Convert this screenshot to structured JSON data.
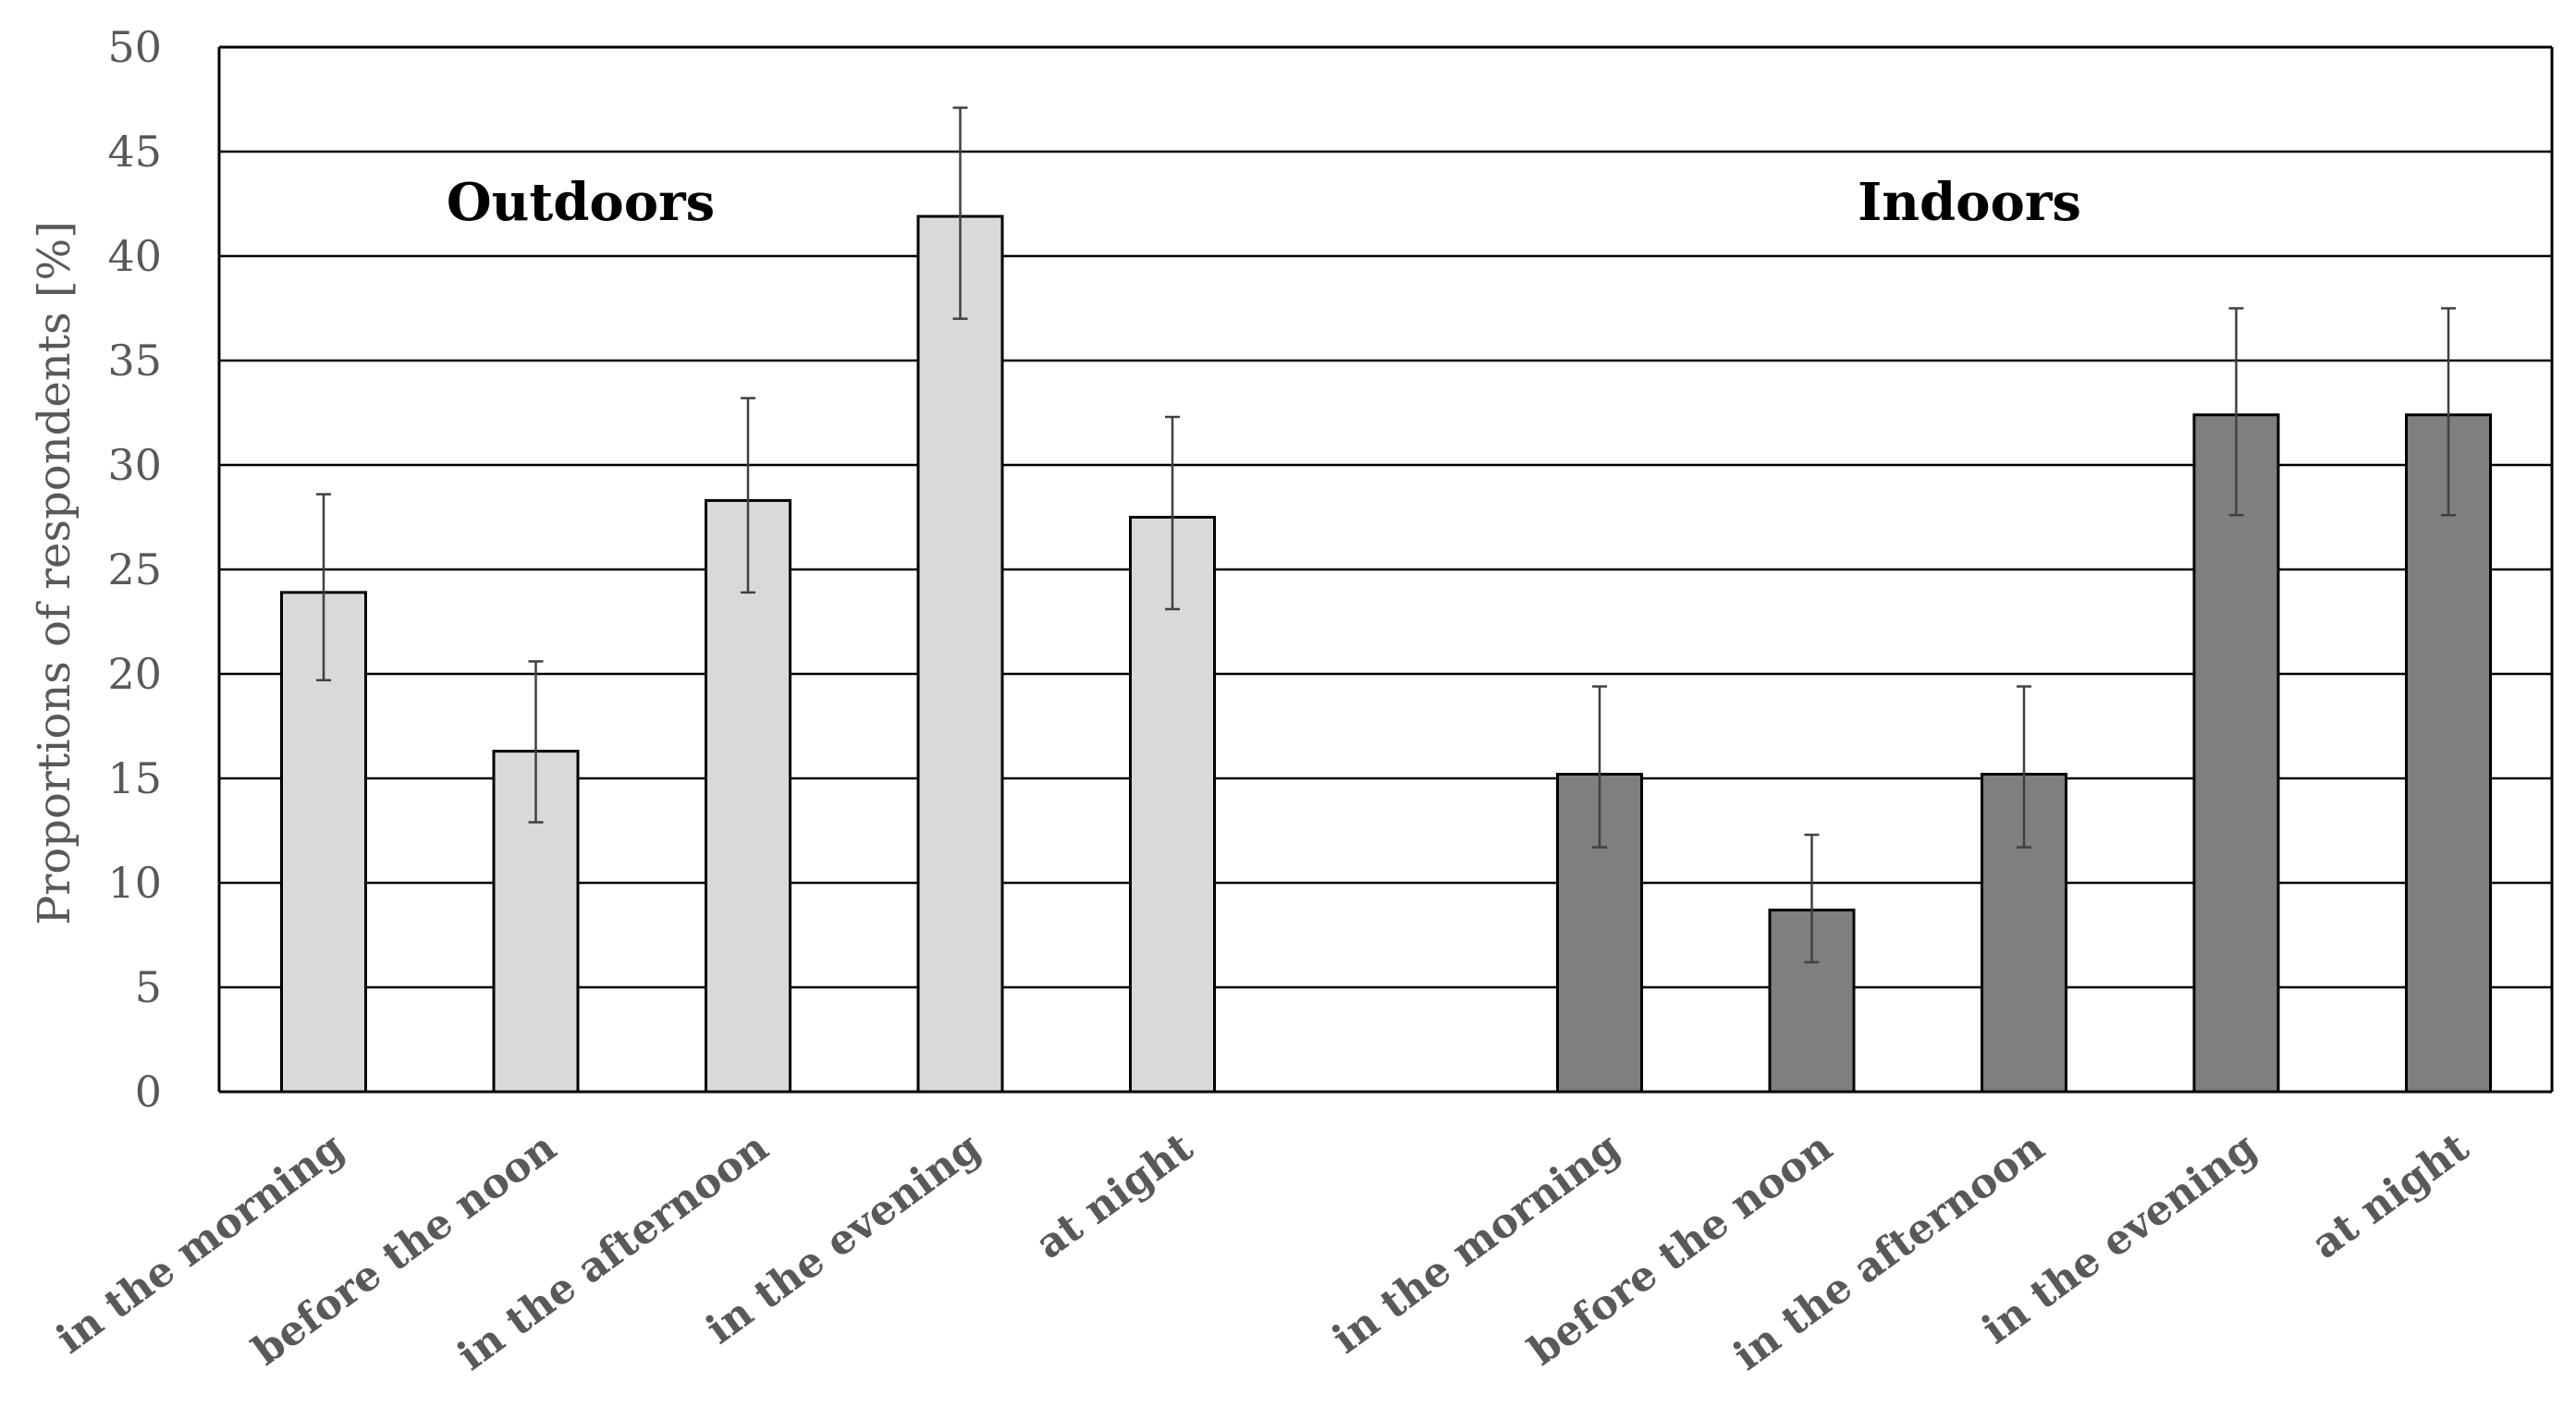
{
  "chart_data": {
    "type": "bar",
    "title": "",
    "xlabel": "",
    "ylabel": "Proportions of respondents [%]",
    "ylim": [
      0,
      50
    ],
    "yticks": [
      0,
      5,
      10,
      15,
      20,
      25,
      30,
      35,
      40,
      45,
      50
    ],
    "grid": true,
    "legend": "none",
    "groups": [
      {
        "name": "Outdoors",
        "color": "#d9d9d9",
        "categories": [
          "in the morning",
          "before the noon",
          "in the afternoon",
          "in the evening",
          "at night"
        ],
        "values": [
          23.9,
          16.3,
          28.3,
          41.9,
          27.5
        ],
        "error_low": [
          19.7,
          12.9,
          23.9,
          37.0,
          23.1
        ],
        "error_high": [
          28.6,
          20.6,
          33.2,
          47.1,
          32.3
        ]
      },
      {
        "name": "Indoors",
        "color": "#7f7f7f",
        "categories": [
          "in the morning",
          "before the noon",
          "in the afternoon",
          "in the evening",
          "at night"
        ],
        "values": [
          15.2,
          8.7,
          15.2,
          32.4,
          32.4
        ],
        "error_low": [
          11.7,
          6.2,
          11.7,
          27.6,
          27.6
        ],
        "error_high": [
          19.4,
          12.3,
          19.4,
          37.5,
          37.5
        ]
      }
    ]
  }
}
